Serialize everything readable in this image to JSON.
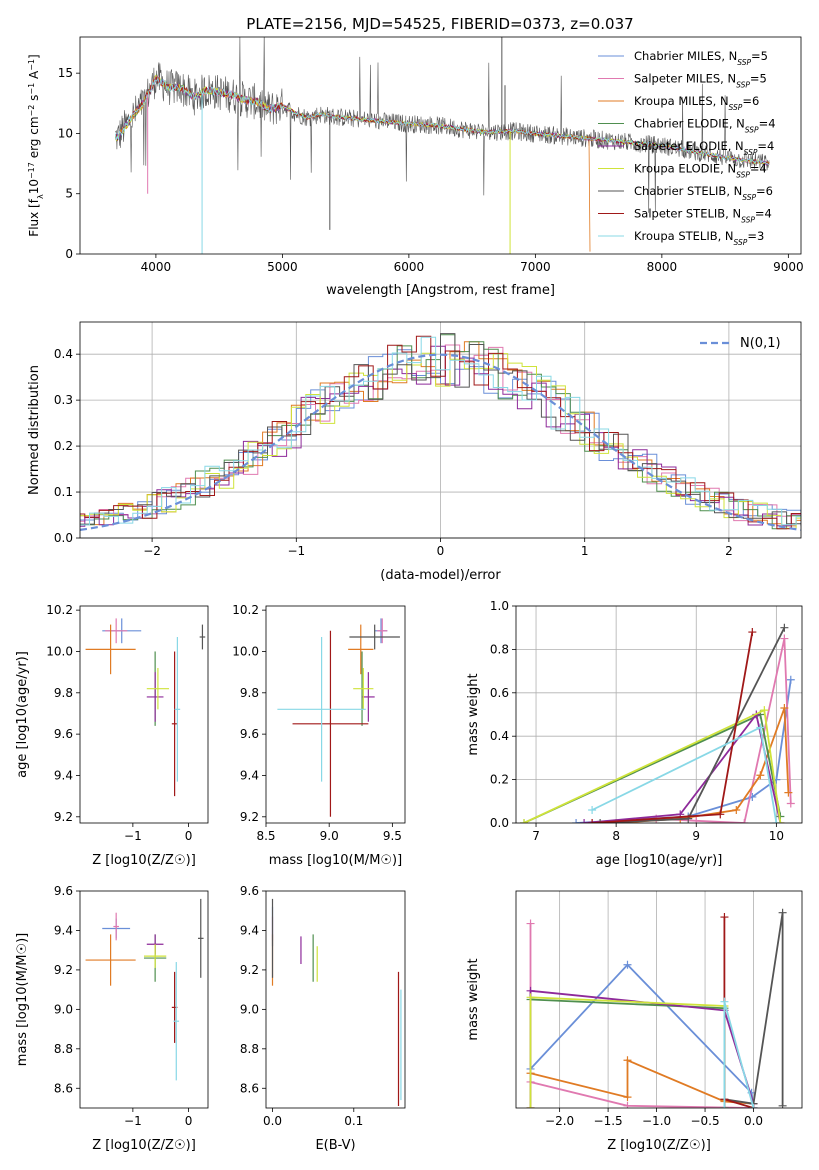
{
  "title": "PLATE=2156, MJD=54525, FIBERID=0373, z=0.037",
  "series_names": [
    "Chabrier MILES",
    "Salpeter MILES",
    "Kroupa MILES",
    "Chabrier ELODIE",
    "Salpeter ELODIE",
    "Kroupa ELODIE",
    "Chabrier STELIB",
    "Salpeter STELIB",
    "Kroupa STELIB"
  ],
  "legend_suffix": [
    "N",
    "SSP",
    "=5",
    "=5",
    "=6",
    "=4",
    "=4",
    "=4",
    "=6",
    "=4",
    "=3"
  ],
  "legend_nssp": [
    "=5",
    "=5",
    "=6",
    "=4",
    "=4",
    "=4",
    "=6",
    "=4",
    "=3"
  ],
  "colors": [
    "#6a8fd8",
    "#e079b0",
    "#e07b24",
    "#4f8f4f",
    "#8e2a9a",
    "#cfe33a",
    "#555555",
    "#a01818",
    "#88d8e6"
  ],
  "chart_data": [
    {
      "id": "spectrum",
      "type": "line",
      "xlabel": "wavelength [Angstrom, rest frame]",
      "ylabel_parts": [
        "Flux [f",
        "λ",
        "10",
        "−17",
        " erg cm",
        "−2",
        " s",
        "−1",
        " A",
        "−1",
        "]"
      ],
      "xlim": [
        3400,
        9100
      ],
      "ylim": [
        0,
        18
      ],
      "xticks": [
        4000,
        5000,
        6000,
        7000,
        8000,
        9000
      ],
      "yticks": [
        0,
        5,
        10,
        15
      ],
      "grid": false,
      "legend": "top-right",
      "continuum_knots": [
        [
          3700,
          9.7
        ],
        [
          3800,
          11.2
        ],
        [
          3900,
          12.5
        ],
        [
          4000,
          14.6
        ],
        [
          4100,
          13.8
        ],
        [
          4200,
          13.8
        ],
        [
          4300,
          13.0
        ],
        [
          4400,
          13.6
        ],
        [
          4500,
          13.4
        ],
        [
          4600,
          13.2
        ],
        [
          4700,
          12.8
        ],
        [
          4800,
          12.6
        ],
        [
          4900,
          12.0
        ],
        [
          5000,
          12.3
        ],
        [
          5100,
          11.7
        ],
        [
          5200,
          11.3
        ],
        [
          5300,
          11.6
        ],
        [
          5400,
          11.4
        ],
        [
          5600,
          11.2
        ],
        [
          5800,
          11.0
        ],
        [
          6000,
          10.8
        ],
        [
          6200,
          10.7
        ],
        [
          6400,
          10.4
        ],
        [
          6600,
          10.1
        ],
        [
          6800,
          10.2
        ],
        [
          7000,
          10.0
        ],
        [
          7200,
          9.8
        ],
        [
          7500,
          9.5
        ],
        [
          8000,
          9.0
        ],
        [
          8500,
          8.0
        ],
        [
          8850,
          7.5
        ]
      ]
    },
    {
      "id": "residuals",
      "type": "histogram",
      "xlabel": "(data-model)/error",
      "ylabel": "Normed distribution",
      "xlim": [
        -2.5,
        2.5
      ],
      "ylim": [
        0,
        0.47
      ],
      "xticks": [
        -2,
        -1,
        0,
        1,
        2
      ],
      "yticks": [
        0.0,
        0.1,
        0.2,
        0.3,
        0.4
      ],
      "grid": true,
      "legend": "top-right",
      "legend_label": "N(0,1)",
      "gaussian": {
        "mu": 0,
        "sigma": 1
      }
    },
    {
      "id": "age_vs_Z",
      "type": "scatter",
      "xlabel": "Z [log10(Z/Z☉)]",
      "ylabel": "age [log10(age/yr)]",
      "xlim": [
        -1.95,
        0.35
      ],
      "ylim": [
        9.17,
        10.22
      ],
      "xticks": [
        -1,
        0
      ],
      "yticks": [
        9.2,
        9.4,
        9.6,
        9.8,
        10.0,
        10.2
      ],
      "points": [
        {
          "x": -1.2,
          "y": 10.1,
          "xe": 0.35,
          "ye": 0.06
        },
        {
          "x": -1.3,
          "y": 10.1,
          "xe": 0.2,
          "ye": 0.06
        },
        {
          "x": -1.4,
          "y": 10.01,
          "xe": 0.45,
          "ye": 0.12
        },
        {
          "x": -0.6,
          "y": 9.82,
          "xe": 0.0,
          "ye": 0.18
        },
        {
          "x": -0.6,
          "y": 9.78,
          "xe": 0.15,
          "ye": 0.12
        },
        {
          "x": -0.55,
          "y": 9.82,
          "xe": 0.2,
          "ye": 0.1
        },
        {
          "x": 0.25,
          "y": 10.07,
          "xe": 0.05,
          "ye": 0.06
        },
        {
          "x": -0.25,
          "y": 9.65,
          "xe": 0.05,
          "ye": 0.35
        },
        {
          "x": -0.2,
          "y": 9.72,
          "xe": 0.05,
          "ye": 0.35
        }
      ]
    },
    {
      "id": "age_vs_mass",
      "type": "scatter",
      "xlabel": "mass [log10(M/M☉)]",
      "ylabel": "",
      "xlim": [
        8.5,
        9.6
      ],
      "ylim": [
        9.17,
        10.22
      ],
      "xticks": [
        8.5,
        9.0,
        9.5
      ],
      "yticks": [
        9.2,
        9.4,
        9.6,
        9.8,
        10.0,
        10.2
      ],
      "points": [
        {
          "x": 9.41,
          "y": 10.1,
          "xe": 0.05,
          "ye": 0.06
        },
        {
          "x": 9.42,
          "y": 10.1,
          "xe": 0.04,
          "ye": 0.06
        },
        {
          "x": 9.25,
          "y": 10.01,
          "xe": 0.1,
          "ye": 0.12
        },
        {
          "x": 9.26,
          "y": 9.82,
          "xe": 0.0,
          "ye": 0.18
        },
        {
          "x": 9.31,
          "y": 9.78,
          "xe": 0.05,
          "ye": 0.12
        },
        {
          "x": 9.27,
          "y": 9.82,
          "xe": 0.08,
          "ye": 0.1
        },
        {
          "x": 9.36,
          "y": 10.07,
          "xe": 0.2,
          "ye": 0.06
        },
        {
          "x": 9.01,
          "y": 9.65,
          "xe": 0.3,
          "ye": 0.45
        },
        {
          "x": 8.94,
          "y": 9.72,
          "xe": 0.35,
          "ye": 0.35
        }
      ]
    },
    {
      "id": "weight_vs_age",
      "type": "line",
      "xlabel": "age [log10(age/yr)]",
      "ylabel": "mass weight",
      "xlim": [
        6.75,
        10.32
      ],
      "ylim": [
        0,
        1.0
      ],
      "xticks": [
        7,
        8,
        9,
        10
      ],
      "yticks": [
        0.0,
        0.2,
        0.4,
        0.6,
        0.8,
        1.0
      ],
      "grid": true,
      "series": [
        {
          "points": [
            [
              7.5,
              0.0
            ],
            [
              8.9,
              0.03
            ],
            [
              9.7,
              0.12
            ],
            [
              10.0,
              0.2
            ],
            [
              10.18,
              0.66
            ]
          ]
        },
        {
          "points": [
            [
              7.7,
              0.0
            ],
            [
              8.5,
              0.02
            ],
            [
              9.0,
              0.01
            ],
            [
              9.6,
              0.0
            ],
            [
              10.1,
              0.85
            ],
            [
              10.18,
              0.09
            ]
          ]
        },
        {
          "points": [
            [
              8.0,
              0.0
            ],
            [
              8.8,
              0.02
            ],
            [
              9.5,
              0.06
            ],
            [
              9.8,
              0.22
            ],
            [
              10.1,
              0.53
            ],
            [
              10.15,
              0.14
            ]
          ]
        },
        {
          "points": [
            [
              6.85,
              0.0
            ],
            [
              9.8,
              0.5
            ],
            [
              10.05,
              0.03
            ]
          ]
        },
        {
          "points": [
            [
              7.6,
              0.0
            ],
            [
              8.8,
              0.04
            ],
            [
              9.75,
              0.5
            ],
            [
              10.05,
              0.0
            ]
          ]
        },
        {
          "points": [
            [
              6.85,
              0.0
            ],
            [
              9.85,
              0.52
            ],
            [
              10.05,
              0.0
            ]
          ]
        },
        {
          "points": [
            [
              7.8,
              0.0
            ],
            [
              8.9,
              0.02
            ],
            [
              10.1,
              0.9
            ]
          ]
        },
        {
          "points": [
            [
              7.7,
              0.0
            ],
            [
              9.3,
              0.04
            ],
            [
              9.7,
              0.88
            ]
          ]
        },
        {
          "points": [
            [
              7.7,
              0.06
            ],
            [
              9.8,
              0.44
            ],
            [
              10.0,
              0.0
            ]
          ]
        }
      ]
    },
    {
      "id": "mass_vs_Z",
      "type": "scatter",
      "xlabel": "Z [log10(Z/Z☉)]",
      "ylabel": "mass [log10(M/M☉)]",
      "xlim": [
        -1.95,
        0.35
      ],
      "ylim": [
        8.5,
        9.6
      ],
      "xticks": [
        -1,
        0
      ],
      "yticks": [
        8.6,
        8.8,
        9.0,
        9.2,
        9.4,
        9.6
      ],
      "points": [
        {
          "x": -1.3,
          "y": 9.41,
          "xe": 0.25,
          "ye": 0.05
        },
        {
          "x": -1.3,
          "y": 9.42,
          "xe": 0.05,
          "ye": 0.07
        },
        {
          "x": -1.4,
          "y": 9.25,
          "xe": 0.45,
          "ye": 0.13
        },
        {
          "x": -0.6,
          "y": 9.26,
          "xe": 0.2,
          "ye": 0.12
        },
        {
          "x": -0.6,
          "y": 9.33,
          "xe": 0.15,
          "ye": 0.05
        },
        {
          "x": -0.6,
          "y": 9.27,
          "xe": 0.2,
          "ye": 0.06
        },
        {
          "x": 0.22,
          "y": 9.36,
          "xe": 0.05,
          "ye": 0.2
        },
        {
          "x": -0.25,
          "y": 9.01,
          "xe": 0.05,
          "ye": 0.18
        },
        {
          "x": -0.22,
          "y": 8.94,
          "xe": 0.05,
          "ye": 0.3
        }
      ]
    },
    {
      "id": "mass_vs_ebv",
      "type": "errorbar",
      "xlabel": "E(B-V)",
      "ylabel": "",
      "xlim": [
        -0.008,
        0.163
      ],
      "ylim": [
        8.5,
        9.6
      ],
      "xticks": [
        0.0,
        0.1
      ],
      "yticks": [
        8.6,
        8.8,
        9.0,
        9.2,
        9.4,
        9.6
      ],
      "points": [
        {
          "x": 0.0,
          "y": 9.42,
          "ye": 0.1
        },
        {
          "x": 0.0,
          "y": 9.41,
          "ye": 0.06
        },
        {
          "x": 0.0,
          "y": 9.25,
          "ye": 0.13
        },
        {
          "x": 0.05,
          "y": 9.26,
          "ye": 0.12
        },
        {
          "x": 0.035,
          "y": 9.3,
          "ye": 0.07
        },
        {
          "x": 0.055,
          "y": 9.23,
          "ye": 0.09
        },
        {
          "x": 0.0,
          "y": 9.36,
          "ye": 0.2
        },
        {
          "x": 0.155,
          "y": 8.85,
          "ye": 0.34
        },
        {
          "x": 0.158,
          "y": 8.82,
          "ye": 0.28
        }
      ]
    },
    {
      "id": "weight_vs_Z",
      "type": "line",
      "xlabel": "Z [log10(Z/Z☉)]",
      "ylabel": "mass weight",
      "xlim": [
        -2.45,
        0.5
      ],
      "ylim": [
        0,
        1.0
      ],
      "xticks": [
        -2.0,
        -1.5,
        -1.0,
        -0.5,
        0.0
      ],
      "grid": true,
      "series": [
        {
          "points": [
            [
              -2.3,
              0.18
            ],
            [
              -1.3,
              0.66
            ],
            [
              -0.02,
              0.07
            ],
            [
              0.0,
              0.0
            ]
          ]
        },
        {
          "points": [
            [
              -2.3,
              0.0
            ],
            [
              -2.3,
              0.85
            ],
            [
              -2.3,
              0.12
            ],
            [
              -1.3,
              0.01
            ],
            [
              0.0,
              0.0
            ]
          ]
        },
        {
          "points": [
            [
              -2.3,
              0.16
            ],
            [
              -1.3,
              0.05
            ],
            [
              -1.3,
              0.22
            ],
            [
              -0.3,
              0.03
            ],
            [
              0.0,
              0.02
            ]
          ]
        },
        {
          "points": [
            [
              -2.3,
              0.5
            ],
            [
              -0.3,
              0.46
            ],
            [
              -0.3,
              0.0
            ]
          ]
        },
        {
          "points": [
            [
              -2.3,
              0.0
            ],
            [
              -2.3,
              0.54
            ],
            [
              -0.3,
              0.45
            ],
            [
              0.0,
              0.02
            ]
          ]
        },
        {
          "points": [
            [
              -2.3,
              0.0
            ],
            [
              -2.3,
              0.51
            ],
            [
              -0.3,
              0.47
            ],
            [
              -0.3,
              0.0
            ]
          ]
        },
        {
          "points": [
            [
              -0.3,
              0.04
            ],
            [
              0.0,
              0.02
            ],
            [
              0.3,
              0.9
            ],
            [
              0.3,
              0.01
            ]
          ]
        },
        {
          "points": [
            [
              -0.3,
              0.0
            ],
            [
              -0.3,
              0.88
            ],
            [
              -0.3,
              0.04
            ],
            [
              0.0,
              0.0
            ]
          ]
        },
        {
          "points": [
            [
              -0.3,
              0.0
            ],
            [
              -0.3,
              0.49
            ],
            [
              0.0,
              0.0
            ]
          ]
        }
      ]
    }
  ]
}
